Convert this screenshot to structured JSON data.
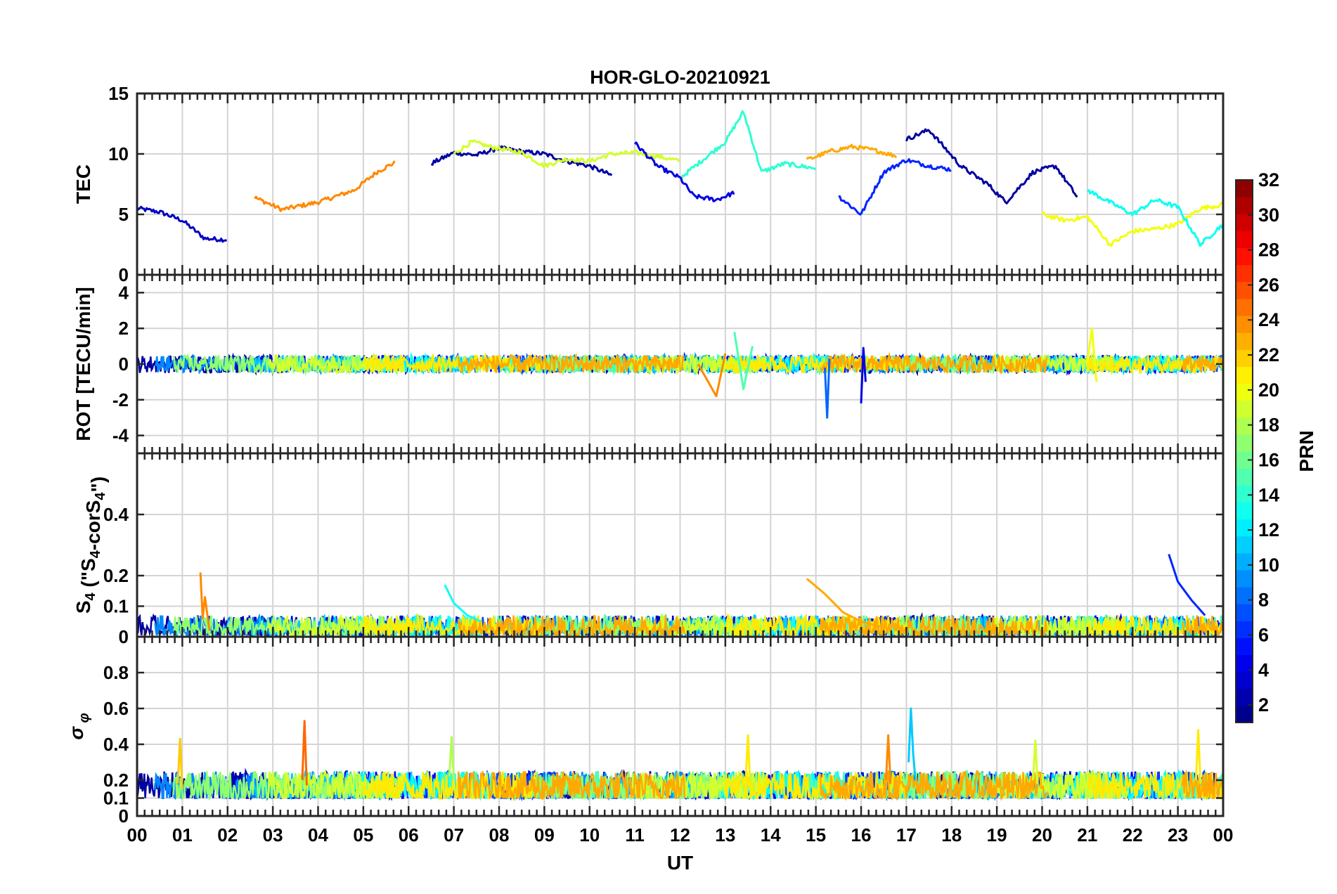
{
  "chart_data": [
    {
      "type": "line",
      "panel": "tec",
      "title": "HOR-GLO-20210921",
      "ylabel": "TEC",
      "ylim": [
        0,
        15
      ],
      "yticks": [
        0,
        5,
        10,
        15
      ],
      "xlim": [
        0,
        24
      ],
      "series": [
        {
          "name": "PRN 3",
          "prn": 3,
          "x": [
            0.0,
            0.5,
            1.0,
            1.5,
            2.0
          ],
          "values": [
            5.5,
            5.2,
            4.5,
            3.0,
            2.9
          ]
        },
        {
          "name": "PRN 24",
          "prn": 24,
          "x": [
            2.6,
            3.2,
            4.0,
            4.8,
            5.3,
            5.7
          ],
          "values": [
            6.4,
            5.4,
            6.0,
            7.0,
            8.5,
            9.3
          ]
        },
        {
          "name": "PRN 2",
          "prn": 2,
          "x": [
            6.5,
            7.0,
            7.5,
            8.0,
            8.5,
            9.0,
            9.5,
            10.0,
            10.5
          ],
          "values": [
            9.2,
            10.1,
            9.9,
            10.5,
            10.2,
            10.0,
            9.4,
            9.0,
            8.2
          ]
        },
        {
          "name": "PRN 19",
          "prn": 19,
          "x": [
            7.0,
            7.4,
            7.8,
            8.5,
            9.0,
            9.5,
            10.0,
            10.5,
            11.0,
            11.5,
            12.0
          ],
          "values": [
            10.0,
            11.0,
            10.6,
            10.1,
            9.0,
            9.6,
            9.4,
            10.0,
            10.1,
            9.8,
            9.4
          ]
        },
        {
          "name": "PRN 14",
          "prn": 14,
          "x": [
            12.0,
            12.5,
            13.0,
            13.4,
            13.8,
            14.3,
            15.0
          ],
          "values": [
            8.0,
            9.5,
            11.0,
            13.5,
            8.5,
            9.2,
            8.8
          ]
        },
        {
          "name": "PRN 4",
          "prn": 4,
          "x": [
            11.0,
            11.5,
            12.0,
            12.3,
            12.8,
            13.2
          ],
          "values": [
            10.9,
            9.0,
            8.0,
            6.5,
            6.2,
            6.8
          ]
        },
        {
          "name": "PRN 23",
          "prn": 23,
          "x": [
            14.8,
            15.3,
            15.8,
            16.3,
            16.8
          ],
          "values": [
            9.5,
            10.2,
            10.6,
            10.3,
            9.8
          ]
        },
        {
          "name": "PRN 6",
          "prn": 6,
          "x": [
            15.5,
            16.0,
            16.5,
            17.0,
            17.5,
            18.0
          ],
          "values": [
            6.5,
            5.0,
            8.5,
            9.5,
            9.0,
            8.7
          ]
        },
        {
          "name": "PRN 2b",
          "prn": 2,
          "x": [
            17.0,
            17.5,
            18.2,
            18.8,
            19.2,
            19.8,
            20.3,
            20.8
          ],
          "values": [
            11.2,
            12.0,
            9.0,
            7.5,
            6.0,
            8.5,
            9.0,
            6.3
          ]
        },
        {
          "name": "PRN 20",
          "prn": 20,
          "x": [
            20.0,
            20.5,
            21.0,
            21.5,
            22.0,
            22.5,
            23.0,
            23.5,
            24.0
          ],
          "values": [
            5.0,
            4.5,
            4.8,
            2.5,
            3.6,
            3.8,
            4.2,
            5.5,
            5.8
          ]
        },
        {
          "name": "PRN 13",
          "prn": 13,
          "x": [
            21.0,
            21.5,
            22.0,
            22.5,
            23.0,
            23.5,
            24.0
          ],
          "values": [
            7.0,
            6.0,
            5.0,
            6.2,
            5.6,
            2.5,
            4.2
          ]
        }
      ]
    },
    {
      "type": "line",
      "panel": "rot",
      "ylabel": "ROT [TECU/min]",
      "ylim": [
        -5,
        5
      ],
      "yticks": [
        -4,
        -2,
        0,
        2,
        4
      ],
      "xlim": [
        0,
        24
      ],
      "series": [
        {
          "name": "PRN 24",
          "prn": 24,
          "x": [
            12.4,
            12.8,
            13.0
          ],
          "values": [
            0.0,
            -1.8,
            0.6
          ]
        },
        {
          "name": "PRN 15",
          "prn": 15,
          "x": [
            13.2,
            13.4,
            13.6
          ],
          "values": [
            1.8,
            -1.4,
            1.0
          ]
        },
        {
          "name": "PRN 8",
          "prn": 8,
          "x": [
            15.2,
            15.25,
            15.3
          ],
          "values": [
            -0.2,
            -3.0,
            0.3
          ]
        },
        {
          "name": "PRN 4",
          "prn": 4,
          "x": [
            16.0,
            16.05,
            16.1
          ],
          "values": [
            -2.2,
            0.9,
            -1.0
          ]
        },
        {
          "name": "PRN 20",
          "prn": 20,
          "x": [
            21.0,
            21.1,
            21.2
          ],
          "values": [
            0.1,
            2.0,
            -1.0
          ]
        }
      ]
    },
    {
      "type": "line",
      "panel": "s4",
      "ylabel": "S4 (\"S4-corS4\")",
      "ylim": [
        0,
        0.6
      ],
      "yticks": [
        0,
        0.1,
        0.2,
        0.4
      ],
      "xlim": [
        0,
        24
      ],
      "series": [
        {
          "name": "PRN 24",
          "prn": 24,
          "x": [
            1.4,
            1.45,
            1.5,
            1.6
          ],
          "values": [
            0.21,
            0.06,
            0.13,
            0.02
          ]
        },
        {
          "name": "PRN 23",
          "prn": 23,
          "x": [
            14.8,
            15.2,
            15.6,
            16.0,
            16.5
          ],
          "values": [
            0.19,
            0.14,
            0.08,
            0.05,
            0.03
          ]
        },
        {
          "name": "PRN 6",
          "prn": 6,
          "x": [
            22.8,
            23.0,
            23.3,
            23.6
          ],
          "values": [
            0.27,
            0.18,
            0.12,
            0.07
          ]
        },
        {
          "name": "PRN 13",
          "prn": 13,
          "x": [
            6.8,
            7.0,
            7.3,
            7.6
          ],
          "values": [
            0.17,
            0.11,
            0.07,
            0.05
          ]
        }
      ]
    },
    {
      "type": "line",
      "panel": "sigma_phi",
      "ylabel": "σ φ",
      "ylim": [
        0,
        1
      ],
      "yticks": [
        0,
        0.1,
        0.2,
        0.4,
        0.6,
        0.8
      ],
      "xlim": [
        0,
        24
      ],
      "xlabel": "UT",
      "xticks": [
        "00",
        "01",
        "02",
        "03",
        "04",
        "05",
        "06",
        "07",
        "08",
        "09",
        "10",
        "11",
        "12",
        "13",
        "14",
        "15",
        "16",
        "17",
        "18",
        "19",
        "20",
        "21",
        "22",
        "23",
        "00"
      ],
      "series": [
        {
          "name": "PRN 22",
          "prn": 22,
          "x": [
            0.9,
            0.95,
            1.0
          ],
          "values": [
            0.18,
            0.43,
            0.15
          ]
        },
        {
          "name": "PRN 25",
          "prn": 25,
          "x": [
            3.65,
            3.7,
            3.75
          ],
          "values": [
            0.2,
            0.53,
            0.17
          ]
        },
        {
          "name": "PRN 18",
          "prn": 18,
          "x": [
            6.9,
            6.95,
            7.0
          ],
          "values": [
            0.22,
            0.44,
            0.2
          ]
        },
        {
          "name": "PRN 21",
          "prn": 21,
          "x": [
            13.45,
            13.5,
            13.55
          ],
          "values": [
            0.2,
            0.45,
            0.16
          ]
        },
        {
          "name": "PRN 24",
          "prn": 24,
          "x": [
            16.55,
            16.6,
            16.65
          ],
          "values": [
            0.2,
            0.45,
            0.18
          ]
        },
        {
          "name": "PRN 11",
          "prn": 11,
          "x": [
            17.05,
            17.1,
            17.15,
            17.2
          ],
          "values": [
            0.3,
            0.6,
            0.35,
            0.2
          ]
        },
        {
          "name": "PRN 19",
          "prn": 19,
          "x": [
            19.8,
            19.85,
            19.9
          ],
          "values": [
            0.2,
            0.42,
            0.18
          ]
        },
        {
          "name": "PRN 21b",
          "prn": 21,
          "x": [
            23.4,
            23.45,
            23.5
          ],
          "values": [
            0.2,
            0.48,
            0.18
          ]
        }
      ]
    }
  ],
  "colorbar": {
    "label": "PRN",
    "range": [
      1,
      32
    ],
    "ticks": [
      2,
      4,
      6,
      8,
      10,
      12,
      14,
      16,
      18,
      20,
      22,
      24,
      26,
      28,
      30,
      32
    ],
    "colormap": "jet"
  }
}
